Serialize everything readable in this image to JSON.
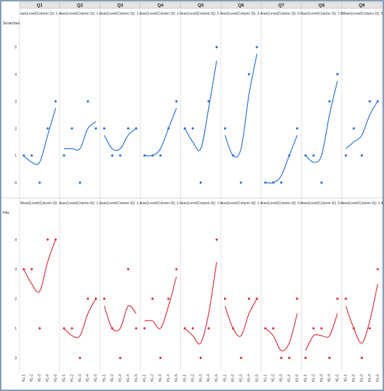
{
  "chart_data": {
    "type": "scatter",
    "trend": "smooth-fit",
    "categories": [
      "KL-1",
      "KL-2",
      "KL-3",
      "KL-4",
      "KL-5"
    ],
    "columns": [
      "Q1",
      "Q2",
      "Q3",
      "Q4",
      "Q5",
      "Q6",
      "Q7",
      "Q8",
      "Q9"
    ],
    "rows": [
      {
        "name": "Scratches",
        "color": "#2a6fd6",
        "ylim": [
          0,
          5.3
        ],
        "yticks": [
          0,
          1,
          2,
          3,
          4,
          5
        ],
        "panels": [
          {
            "mean_label": "ean(Level(Column 3)): 1.4",
            "values": [
              1,
              1,
              0,
              2,
              3
            ]
          },
          {
            "mean_label": "ean(Level(Column 3)): 1.6",
            "values": [
              1,
              2,
              0,
              3,
              2
            ]
          },
          {
            "mean_label": "ean(Level(Column 3)): 1.6",
            "values": [
              2,
              1,
              1,
              2,
              2
            ]
          },
          {
            "mean_label": "ean(Level(Column 3)): 1.6",
            "values": [
              1,
              1,
              1,
              2,
              3
            ]
          },
          {
            "mean_label": "ean(Level(Column 3)): 2.4",
            "values": [
              2,
              2,
              0,
              3,
              5
            ]
          },
          {
            "mean_label": "ean(Level(Column 3)): 2.4",
            "values": [
              2,
              1,
              0,
              4,
              5
            ]
          },
          {
            "mean_label": "ean(Level(Column 3)): 0.6",
            "values": [
              0,
              0,
              0,
              1,
              2
            ]
          },
          {
            "mean_label": "ean(Level(Column 3)): 1.8",
            "values": [
              1,
              1,
              0,
              3,
              4
            ]
          },
          {
            "mean_label": "Mean(Level(Column 3)): 2",
            "values": [
              1,
              2,
              1,
              3,
              3
            ]
          }
        ]
      },
      {
        "name": "Pits",
        "color": "#d9303a",
        "ylim": [
          -0.2,
          4.3
        ],
        "yticks": [
          0,
          1,
          2,
          3,
          4
        ],
        "panels": [
          {
            "mean_label": "Mean(Level(Column 4)): 3",
            "values": [
              3,
              3,
              1,
              4,
              4
            ]
          },
          {
            "mean_label": "ean(Level(Column 4)): 1.2",
            "values": [
              1,
              1,
              0,
              2,
              2
            ]
          },
          {
            "mean_label": "ean(Level(Column 4)): 1.4",
            "values": [
              2,
              1,
              0,
              3,
              1
            ]
          },
          {
            "mean_label": "ean(Level(Column 4)): 1.6",
            "values": [
              1,
              2,
              0,
              2,
              3
            ]
          },
          {
            "mean_label": "ean(Level(Column 4)): 1.4",
            "values": [
              1,
              1,
              0,
              1,
              4
            ]
          },
          {
            "mean_label": "ean(Level(Column 4)): 1.4",
            "values": [
              2,
              1,
              0,
              2,
              2
            ]
          },
          {
            "mean_label": "ean(Level(Column 4)): 0.8",
            "values": [
              1,
              1,
              0,
              0,
              2
            ]
          },
          {
            "mean_label": "ean(Level(Column 4)): 0.8",
            "values": [
              0,
              1,
              1,
              0,
              2
            ]
          },
          {
            "mean_label": "ean(Level(Column 4)): 1.4",
            "values": [
              2,
              1,
              0,
              1,
              3
            ]
          }
        ]
      }
    ]
  }
}
